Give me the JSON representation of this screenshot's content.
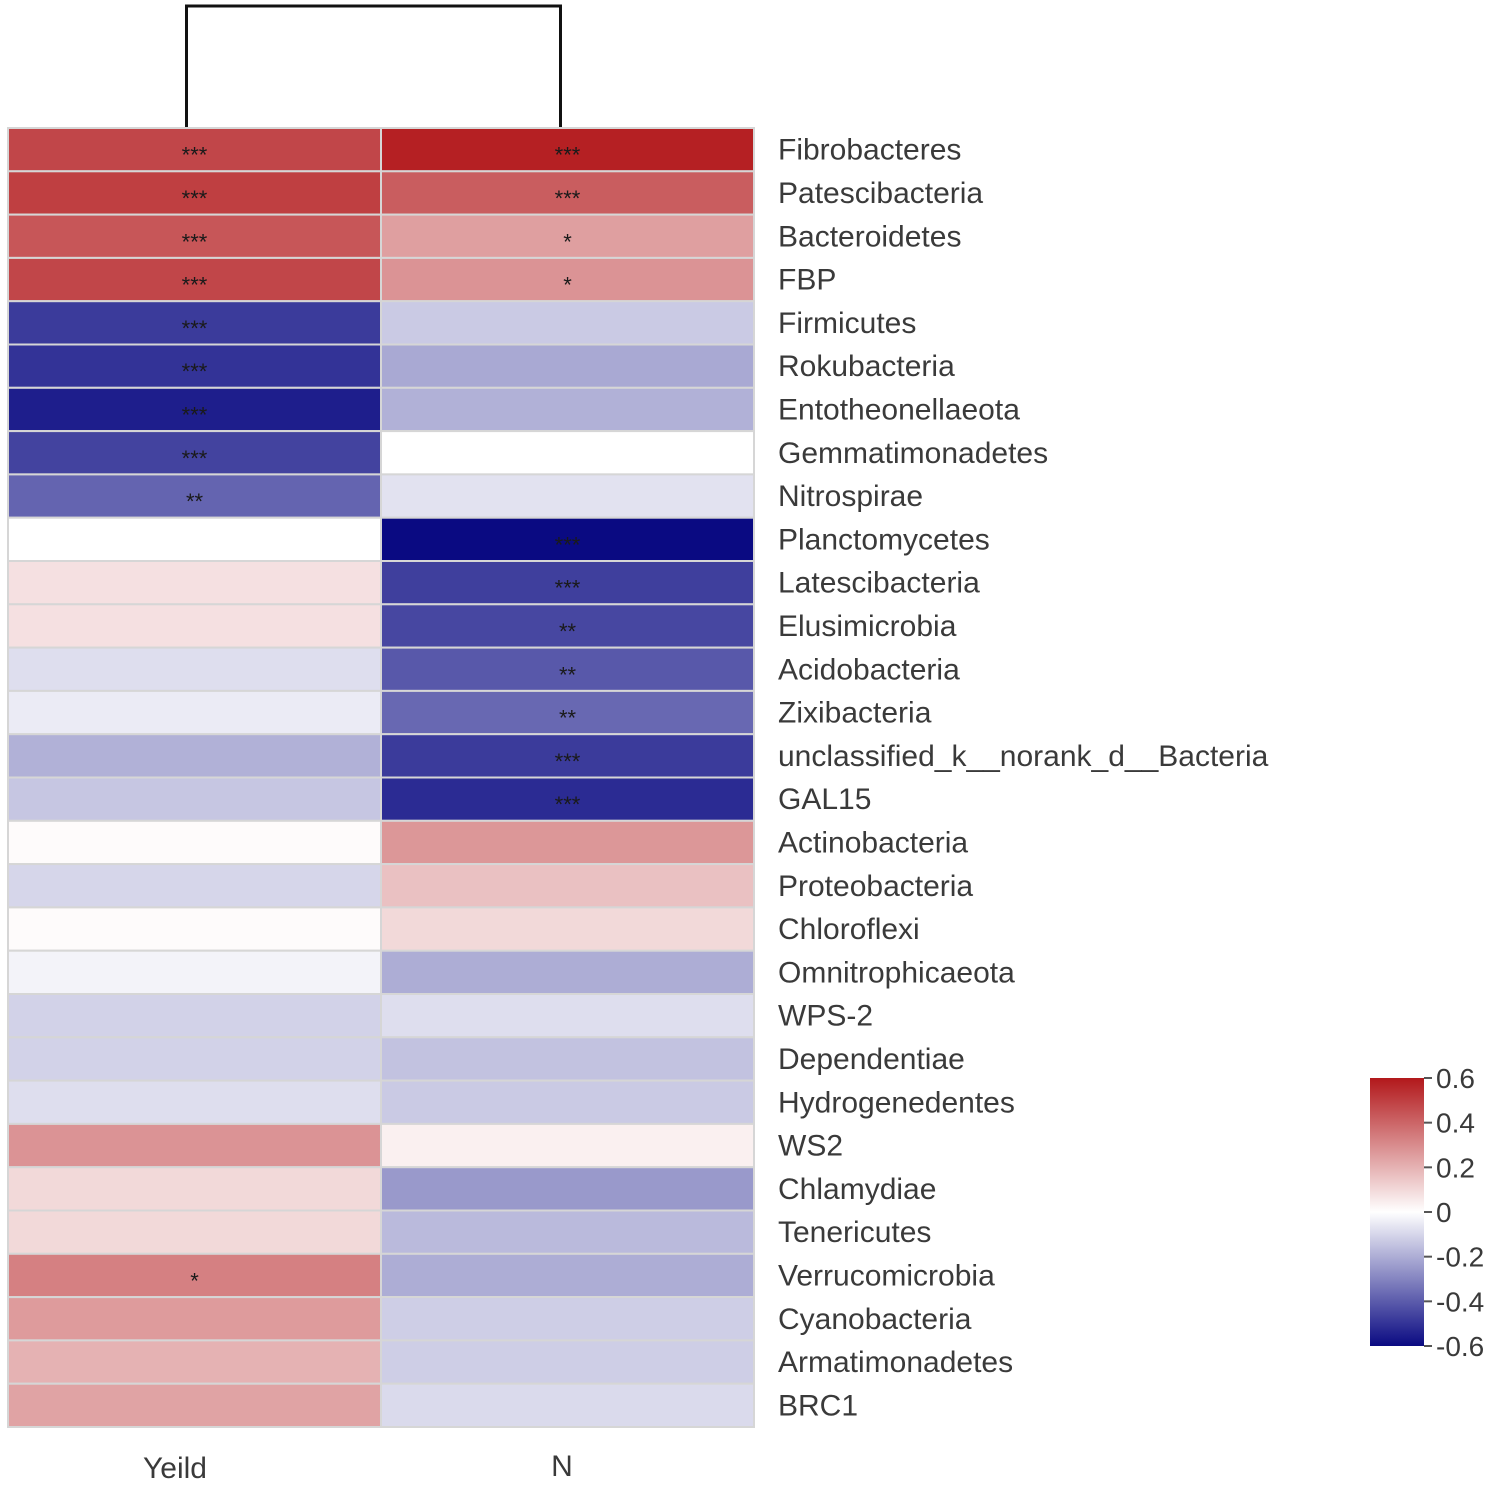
{
  "chart_data": {
    "type": "heatmap",
    "columns": [
      "Yeild",
      "N"
    ],
    "rows": [
      "Fibrobacteres",
      "Patescibacteria",
      "Bacteroidetes",
      "FBP",
      "Firmicutes",
      "Rokubacteria",
      "Entotheonellaeota",
      "Gemmatimonadetes",
      "Nitrospirae",
      "Planctomycetes",
      "Latescibacteria",
      "Elusimicrobia",
      "Acidobacteria",
      "Zixibacteria",
      "unclassified_k__norank_d__Bacteria",
      "GAL15",
      "Actinobacteria",
      "Proteobacteria",
      "Chloroflexi",
      "Omnitrophicaeota",
      "WPS-2",
      "Dependentiae",
      "Hydrogenedentes",
      "WS2",
      "Chlamydiae",
      "Tenericutes",
      "Verrucomicrobia",
      "Cyanobacteria",
      "Armatimonadetes",
      "BRC1"
    ],
    "values": [
      [
        0.48,
        0.58
      ],
      [
        0.5,
        0.42
      ],
      [
        0.44,
        0.25
      ],
      [
        0.48,
        0.28
      ],
      [
        -0.48,
        -0.13
      ],
      [
        -0.5,
        -0.21
      ],
      [
        -0.55,
        -0.19
      ],
      [
        -0.46,
        0.0
      ],
      [
        -0.38,
        -0.07
      ],
      [
        0.0,
        -0.62
      ],
      [
        0.08,
        -0.47
      ],
      [
        0.08,
        -0.45
      ],
      [
        -0.08,
        -0.41
      ],
      [
        -0.05,
        -0.37
      ],
      [
        -0.19,
        -0.48
      ],
      [
        -0.14,
        -0.52
      ],
      [
        0.01,
        0.27
      ],
      [
        -0.1,
        0.16
      ],
      [
        0.01,
        0.1
      ],
      [
        -0.03,
        -0.2
      ],
      [
        -0.11,
        -0.08
      ],
      [
        -0.11,
        -0.15
      ],
      [
        -0.08,
        -0.13
      ],
      [
        0.28,
        0.04
      ],
      [
        0.1,
        -0.25
      ],
      [
        0.1,
        -0.17
      ],
      [
        0.33,
        -0.2
      ],
      [
        0.26,
        -0.12
      ],
      [
        0.2,
        -0.12
      ],
      [
        0.24,
        -0.09
      ]
    ],
    "significance": [
      [
        "***",
        "***"
      ],
      [
        "***",
        "***"
      ],
      [
        "***",
        "*"
      ],
      [
        "***",
        "*"
      ],
      [
        "***",
        ""
      ],
      [
        "***",
        ""
      ],
      [
        "***",
        ""
      ],
      [
        "***",
        ""
      ],
      [
        "**",
        ""
      ],
      [
        "",
        "***"
      ],
      [
        "",
        "***"
      ],
      [
        "",
        "**"
      ],
      [
        "",
        "**"
      ],
      [
        "",
        "**"
      ],
      [
        "",
        "***"
      ],
      [
        "",
        "***"
      ],
      [
        "",
        ""
      ],
      [
        "",
        ""
      ],
      [
        "",
        ""
      ],
      [
        "",
        ""
      ],
      [
        "",
        ""
      ],
      [
        "",
        ""
      ],
      [
        "",
        ""
      ],
      [
        "",
        ""
      ],
      [
        "",
        ""
      ],
      [
        "",
        ""
      ],
      [
        "*",
        ""
      ],
      [
        "",
        ""
      ],
      [
        "",
        ""
      ],
      [
        "",
        ""
      ]
    ],
    "color_scale": {
      "min": -0.6,
      "max": 0.6,
      "low_color": "#0a0a82",
      "mid_color": "#ffffff",
      "high_color": "#b2181b",
      "tick_labels": [
        "0.6",
        "0.4",
        "0.2",
        "0",
        "-0.2",
        "-0.4",
        "-0.6"
      ],
      "tick_values": [
        0.6,
        0.4,
        0.2,
        0,
        -0.2,
        -0.4,
        -0.6
      ]
    },
    "dendrogram": {
      "orientation": "top",
      "leaves": [
        "Yeild",
        "N"
      ]
    },
    "legend_position": "bottom-right"
  }
}
